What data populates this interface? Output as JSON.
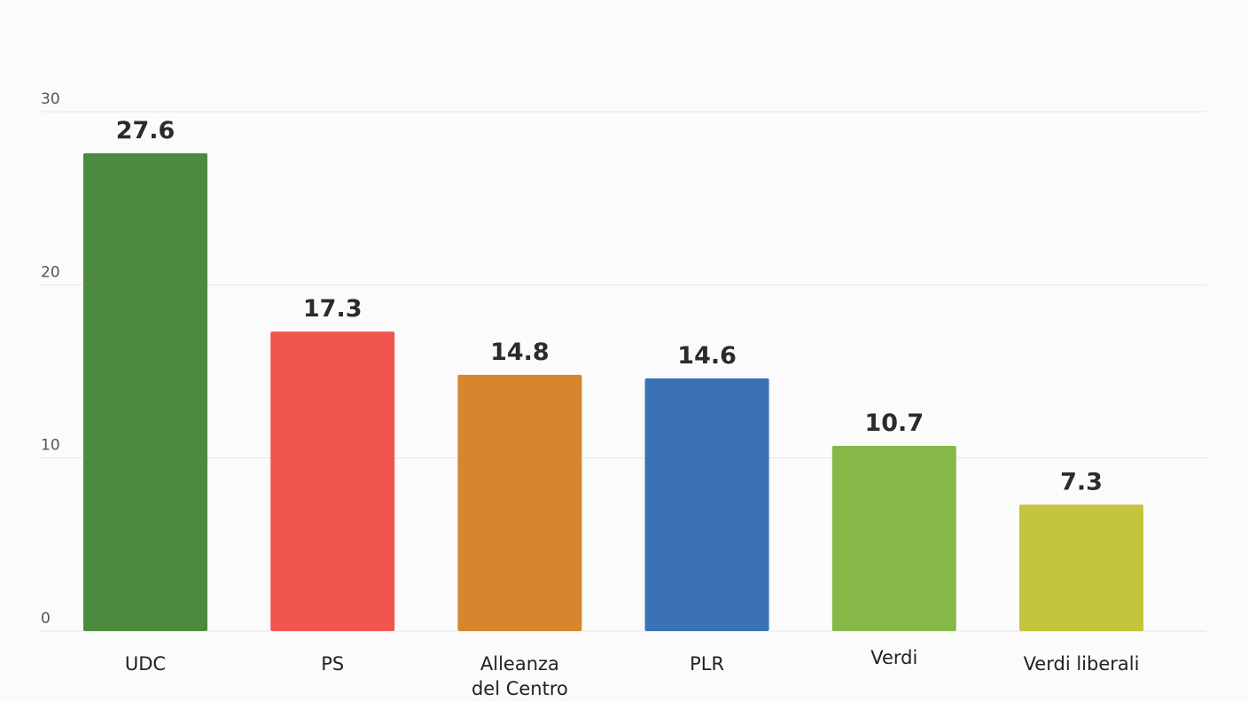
{
  "chart_data": {
    "type": "bar",
    "categories": [
      [
        "UDC"
      ],
      [
        "PS"
      ],
      [
        "Alleanza",
        "del Centro"
      ],
      [
        "PLR"
      ],
      [
        "Verdi"
      ],
      [
        "Verdi liberali"
      ]
    ],
    "values": [
      27.6,
      17.3,
      14.8,
      14.6,
      10.7,
      7.3
    ],
    "value_labels": [
      "27.6",
      "17.3",
      "14.8",
      "14.6",
      "10.7",
      "7.3"
    ],
    "colors": [
      "#4c8a3e",
      "#f0564d",
      "#d6862d",
      "#3a72b5",
      "#86b848",
      "#c5c43f"
    ],
    "ylim": [
      0,
      30
    ],
    "yticks": [
      0,
      10,
      20,
      30
    ],
    "ytick_labels": [
      "0",
      "10",
      "20",
      "30"
    ],
    "grid": true,
    "title": "",
    "xlabel": "",
    "ylabel": ""
  }
}
